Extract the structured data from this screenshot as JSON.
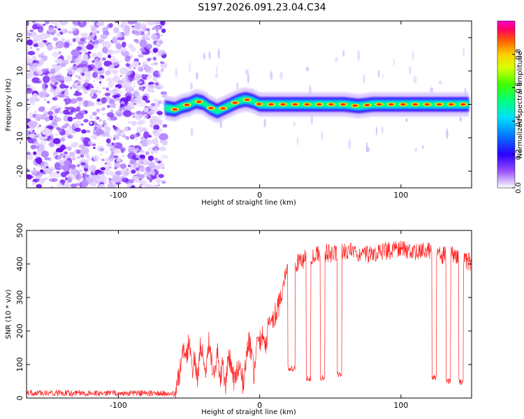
{
  "title": "S197.2026.091.23.04.C34",
  "chart_data": [
    {
      "type": "heatmap",
      "name": "spectrogram",
      "xlabel": "Height of straight line (km)",
      "ylabel": "Frequency (Hz)",
      "xlim": [
        -165,
        150
      ],
      "ylim": [
        -25,
        25
      ],
      "xticks": [
        -100,
        0,
        100
      ],
      "yticks": [
        -20,
        -10,
        0,
        10,
        20
      ],
      "noise_region_x": [
        -165,
        -67
      ],
      "signal_track": {
        "x": [
          -67,
          -60,
          -55,
          -50,
          -45,
          -40,
          -35,
          -30,
          -25,
          -20,
          -15,
          -10,
          -5,
          0,
          10,
          20,
          30,
          40,
          50,
          60,
          70,
          80,
          90,
          100,
          110,
          120,
          130,
          140,
          148
        ],
        "freq": [
          -1,
          -1.5,
          -0.5,
          0,
          1,
          0.5,
          -1,
          -2,
          -1,
          0,
          1,
          1.5,
          1,
          0,
          0,
          0,
          0,
          0,
          0,
          0,
          -0.5,
          0,
          0,
          0,
          0,
          0,
          0,
          0,
          0
        ]
      },
      "colorbar": {
        "label": "Normalized spectral amplitude",
        "range": [
          0,
          1
        ],
        "ticks": [
          "0.0",
          "0.2",
          "0.4",
          "0.6",
          "0.8"
        ]
      }
    },
    {
      "type": "line",
      "name": "snr",
      "xlabel": "Height of straight line (km)",
      "ylabel": "SNR (10 * v/v)",
      "xlim": [
        -165,
        150
      ],
      "ylim": [
        0,
        500
      ],
      "xticks": [
        -100,
        0,
        100
      ],
      "yticks": [
        0,
        100,
        200,
        300,
        400,
        500
      ],
      "color": "#ff2020",
      "series": [
        {
          "name": "SNR",
          "x": [
            -165,
            -140,
            -120,
            -100,
            -80,
            -60,
            -57,
            -55,
            -52,
            -50,
            -48,
            -46,
            -44,
            -42,
            -40,
            -38,
            -36,
            -34,
            -32,
            -30,
            -28,
            -26,
            -24,
            -22,
            -20,
            -18,
            -16,
            -14,
            -12,
            -10,
            -8,
            -6,
            -4,
            -2,
            0,
            2,
            4,
            6,
            8,
            10,
            12,
            14,
            16,
            18,
            20,
            24,
            28,
            30,
            32,
            36,
            40,
            44,
            50,
            60,
            70,
            80,
            90,
            100,
            110,
            120,
            125,
            130,
            135,
            140,
            145,
            150
          ],
          "y": [
            15,
            15,
            14,
            15,
            14,
            14,
            60,
            150,
            120,
            170,
            80,
            120,
            60,
            160,
            140,
            70,
            180,
            110,
            50,
            140,
            60,
            100,
            40,
            130,
            90,
            50,
            80,
            110,
            40,
            100,
            170,
            140,
            70,
            150,
            170,
            190,
            150,
            210,
            230,
            240,
            260,
            280,
            320,
            360,
            380,
            390,
            410,
            400,
            420,
            415,
            425,
            440,
            430,
            440,
            435,
            425,
            440,
            445,
            435,
            440,
            430,
            425,
            430,
            420,
            410,
            405
          ]
        },
        {
          "name": "dropouts",
          "x": [
            20,
            25,
            33,
            36,
            43,
            46,
            55,
            58,
            122,
            125,
            132,
            135,
            141,
            144
          ],
          "y": [
            90,
            70,
            60,
            70,
            60,
            50,
            70,
            60,
            60,
            55,
            50,
            55,
            50,
            55
          ]
        }
      ]
    }
  ]
}
